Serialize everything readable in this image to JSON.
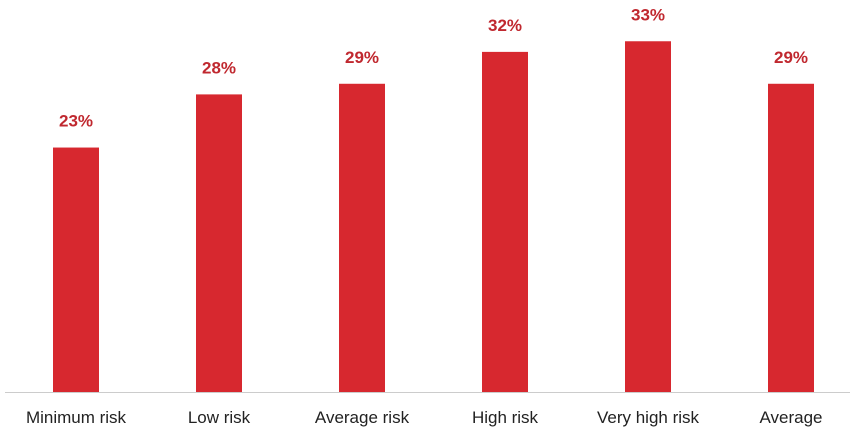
{
  "chart_data": {
    "type": "bar",
    "title": "",
    "xlabel": "",
    "ylabel": "",
    "categories": [
      "Minimum risk",
      "Low risk",
      "Average risk",
      "High risk",
      "Very high risk",
      "Average"
    ],
    "values": [
      23,
      28,
      29,
      32,
      33,
      29
    ],
    "value_labels": [
      "23%",
      "28%",
      "29%",
      "32%",
      "33%",
      "29%"
    ],
    "unit": "%",
    "ylim": [
      0,
      35
    ],
    "grid": false,
    "legend": "none",
    "colors": {
      "bar": "#d7282f",
      "value_label": "#c0282f",
      "axis": "#cccccc",
      "category_label": "#222222"
    }
  }
}
